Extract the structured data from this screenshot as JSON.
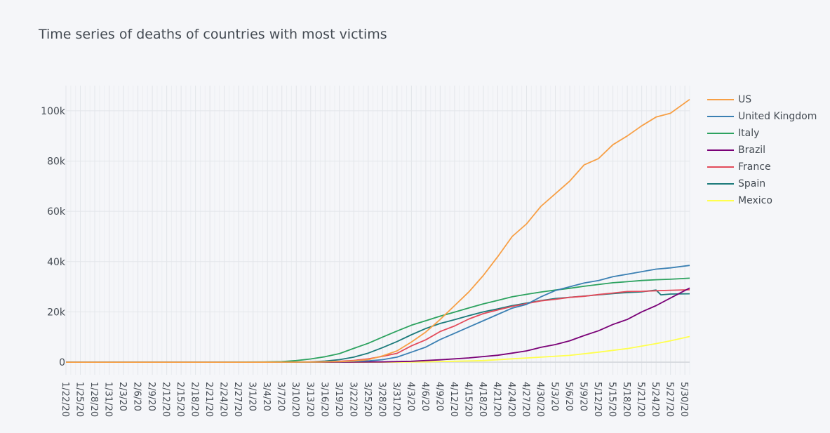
{
  "chart_data": {
    "type": "line",
    "title": "Time series of deaths of countries with most victims",
    "xlabel": "",
    "ylabel": "",
    "x_tick_labels": [
      "1/22/20",
      "1/25/20",
      "1/28/20",
      "1/31/20",
      "2/3/20",
      "2/6/20",
      "2/9/20",
      "2/12/20",
      "2/15/20",
      "2/18/20",
      "2/21/20",
      "2/24/20",
      "2/27/20",
      "3/1/20",
      "3/4/20",
      "3/7/20",
      "3/10/20",
      "3/13/20",
      "3/16/20",
      "3/19/20",
      "3/22/20",
      "3/25/20",
      "3/28/20",
      "3/31/20",
      "4/3/20",
      "4/6/20",
      "4/9/20",
      "4/12/20",
      "4/15/20",
      "4/18/20",
      "4/21/20",
      "4/24/20",
      "4/27/20",
      "4/30/20",
      "5/3/20",
      "5/6/20",
      "5/9/20",
      "5/12/20",
      "5/15/20",
      "5/18/20",
      "5/21/20",
      "5/24/20",
      "5/27/20",
      "5/30/20"
    ],
    "y_tick_labels": [
      "0",
      "20k",
      "40k",
      "60k",
      "80k",
      "100k"
    ],
    "y_tick_values": [
      0,
      20000,
      40000,
      60000,
      80000,
      100000
    ],
    "ylim": [
      -5000,
      110000
    ],
    "xlim": [
      "1/22/20",
      "5/31/20"
    ],
    "grid": true,
    "legend_position": "top-right",
    "series": [
      {
        "name": "US",
        "color": "#f79f45",
        "x": [
          "1/22/20",
          "2/29/20",
          "3/10/20",
          "3/15/20",
          "3/19/20",
          "3/22/20",
          "3/25/20",
          "3/28/20",
          "3/31/20",
          "4/3/20",
          "4/6/20",
          "4/9/20",
          "4/12/20",
          "4/15/20",
          "4/18/20",
          "4/21/20",
          "4/24/20",
          "4/27/20",
          "4/30/20",
          "5/3/20",
          "5/6/20",
          "5/9/20",
          "5/12/20",
          "5/15/20",
          "5/18/20",
          "5/21/20",
          "5/24/20",
          "5/27/20",
          "5/31/20"
        ],
        "values": [
          0,
          1,
          28,
          70,
          200,
          500,
          1000,
          2500,
          4500,
          8000,
          12000,
          17000,
          22500,
          28000,
          34500,
          42000,
          50000,
          55000,
          62000,
          67000,
          72000,
          78500,
          81000,
          86500,
          90000,
          94000,
          97500,
          99000,
          104500
        ]
      },
      {
        "name": "United Kingdom",
        "color": "#3b80b3",
        "x": [
          "1/22/20",
          "3/6/20",
          "3/13/20",
          "3/19/20",
          "3/22/20",
          "3/25/20",
          "3/28/20",
          "3/31/20",
          "4/3/20",
          "4/6/20",
          "4/9/20",
          "4/12/20",
          "4/15/20",
          "4/18/20",
          "4/21/20",
          "4/24/20",
          "4/27/20",
          "4/30/20",
          "5/3/20",
          "5/6/20",
          "5/9/20",
          "5/12/20",
          "5/15/20",
          "5/18/20",
          "5/21/20",
          "5/24/20",
          "5/27/20",
          "5/31/20"
        ],
        "values": [
          0,
          1,
          10,
          150,
          300,
          500,
          1000,
          2000,
          4000,
          6000,
          9000,
          11500,
          14000,
          16500,
          19000,
          21500,
          23000,
          26000,
          28500,
          30000,
          31500,
          32500,
          34000,
          35000,
          36000,
          37000,
          37500,
          38500
        ]
      },
      {
        "name": "Italy",
        "color": "#2ca25f",
        "x": [
          "1/22/20",
          "2/21/20",
          "3/3/20",
          "3/7/20",
          "3/10/20",
          "3/13/20",
          "3/16/20",
          "3/19/20",
          "3/22/20",
          "3/25/20",
          "3/28/20",
          "3/31/20",
          "4/3/20",
          "4/6/20",
          "4/9/20",
          "4/12/20",
          "4/15/20",
          "4/18/20",
          "4/21/20",
          "4/24/20",
          "4/27/20",
          "4/30/20",
          "5/3/20",
          "5/6/20",
          "5/9/20",
          "5/12/20",
          "5/15/20",
          "5/18/20",
          "5/21/20",
          "5/24/20",
          "5/27/20",
          "5/31/20"
        ],
        "values": [
          0,
          1,
          80,
          230,
          630,
          1270,
          2160,
          3400,
          5500,
          7500,
          10000,
          12400,
          14700,
          16500,
          18300,
          19900,
          21600,
          23200,
          24600,
          26000,
          27000,
          27900,
          28700,
          29400,
          30200,
          30900,
          31600,
          32000,
          32500,
          32800,
          33000,
          33400
        ]
      },
      {
        "name": "Brazil",
        "color": "#7a0177",
        "x": [
          "1/22/20",
          "3/17/20",
          "3/28/20",
          "4/3/20",
          "4/9/20",
          "4/15/20",
          "4/21/20",
          "4/24/20",
          "4/27/20",
          "4/30/20",
          "5/3/20",
          "5/6/20",
          "5/9/20",
          "5/12/20",
          "5/15/20",
          "5/18/20",
          "5/21/20",
          "5/24/20",
          "5/27/20",
          "5/31/20"
        ],
        "values": [
          0,
          1,
          100,
          350,
          950,
          1700,
          2750,
          3600,
          4500,
          5900,
          7000,
          8500,
          10600,
          12500,
          15000,
          17000,
          20000,
          22500,
          25500,
          29500
        ]
      },
      {
        "name": "France",
        "color": "#e34a5a",
        "x": [
          "1/22/20",
          "3/7/20",
          "3/13/20",
          "3/16/20",
          "3/19/20",
          "3/22/20",
          "3/25/20",
          "3/28/20",
          "3/31/20",
          "4/3/20",
          "4/6/20",
          "4/9/20",
          "4/12/20",
          "4/15/20",
          "4/18/20",
          "4/21/20",
          "4/24/20",
          "4/27/20",
          "4/30/20",
          "5/3/20",
          "5/6/20",
          "5/9/20",
          "5/12/20",
          "5/15/20",
          "5/18/20",
          "5/21/20",
          "5/24/20",
          "5/27/20",
          "5/31/20"
        ],
        "values": [
          0,
          10,
          80,
          150,
          350,
          700,
          1300,
          2300,
          3500,
          6500,
          8900,
          12200,
          14400,
          17200,
          19300,
          20800,
          22200,
          23300,
          24400,
          25000,
          25800,
          26200,
          26900,
          27500,
          28100,
          28200,
          28400,
          28600,
          28800
        ]
      },
      {
        "name": "Spain",
        "color": "#1b7a7a",
        "x": [
          "1/22/20",
          "3/6/20",
          "3/13/20",
          "3/16/20",
          "3/19/20",
          "3/22/20",
          "3/25/20",
          "3/28/20",
          "3/31/20",
          "4/3/20",
          "4/6/20",
          "4/9/20",
          "4/12/20",
          "4/15/20",
          "4/18/20",
          "4/21/20",
          "4/24/20",
          "4/27/20",
          "4/30/20",
          "5/3/20",
          "5/6/20",
          "5/9/20",
          "5/12/20",
          "5/15/20",
          "5/18/20",
          "5/21/20",
          "5/24/20",
          "5/25/20",
          "5/27/20",
          "5/31/20"
        ],
        "values": [
          0,
          5,
          130,
          450,
          1000,
          2000,
          3600,
          5800,
          8200,
          10900,
          13400,
          15400,
          16900,
          18500,
          20000,
          21200,
          22500,
          23500,
          24500,
          25300,
          25800,
          26300,
          26800,
          27300,
          27700,
          28000,
          28700,
          26800,
          27100,
          27200
        ]
      },
      {
        "name": "Mexico",
        "color": "#ffff4d",
        "x": [
          "1/22/20",
          "3/20/20",
          "3/31/20",
          "4/6/20",
          "4/12/20",
          "4/18/20",
          "4/24/20",
          "4/30/20",
          "5/6/20",
          "5/12/20",
          "5/18/20",
          "5/24/20",
          "5/27/20",
          "5/31/20"
        ],
        "values": [
          0,
          1,
          30,
          130,
          350,
          650,
          1350,
          2000,
          2700,
          4000,
          5400,
          7400,
          8500,
          10200
        ]
      }
    ]
  }
}
